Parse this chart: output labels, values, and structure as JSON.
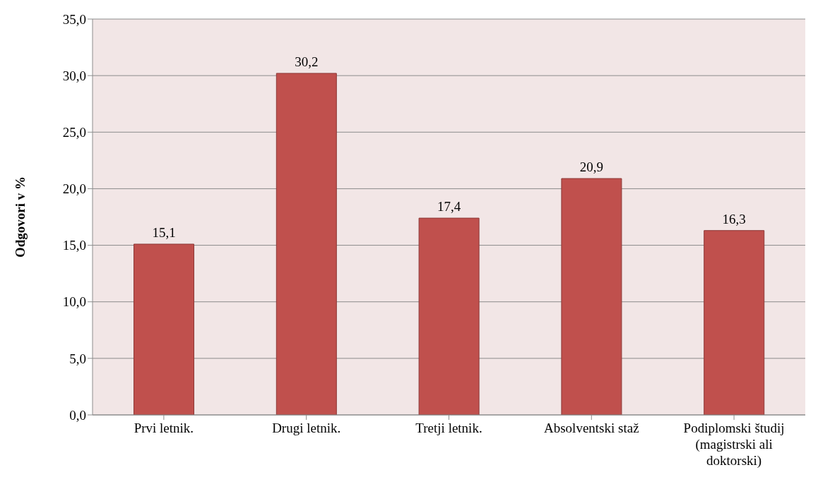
{
  "chart_data": {
    "type": "bar",
    "ylabel": "Odgovori v %",
    "categories": [
      "Prvi letnik.",
      "Drugi letnik.",
      "Tretji letnik.",
      "Absolventski staž",
      "Podiplomski študij (magistrski ali doktorski)"
    ],
    "values": [
      15.1,
      30.2,
      17.4,
      20.9,
      16.3
    ],
    "value_labels": [
      "15,1",
      "30,2",
      "17,4",
      "20,9",
      "16,3"
    ],
    "color": "#c0504d",
    "ylim": [
      0,
      35
    ],
    "yticks": [
      {
        "value": 0,
        "label": "0,0"
      },
      {
        "value": 5,
        "label": "5,0"
      },
      {
        "value": 10,
        "label": "10,0"
      },
      {
        "value": 15,
        "label": "15,0"
      },
      {
        "value": 20,
        "label": "20,0"
      },
      {
        "value": 25,
        "label": "25,0"
      },
      {
        "value": 30,
        "label": "30,0"
      },
      {
        "value": 35,
        "label": "35,0"
      }
    ],
    "grid": "y",
    "legend": false
  }
}
